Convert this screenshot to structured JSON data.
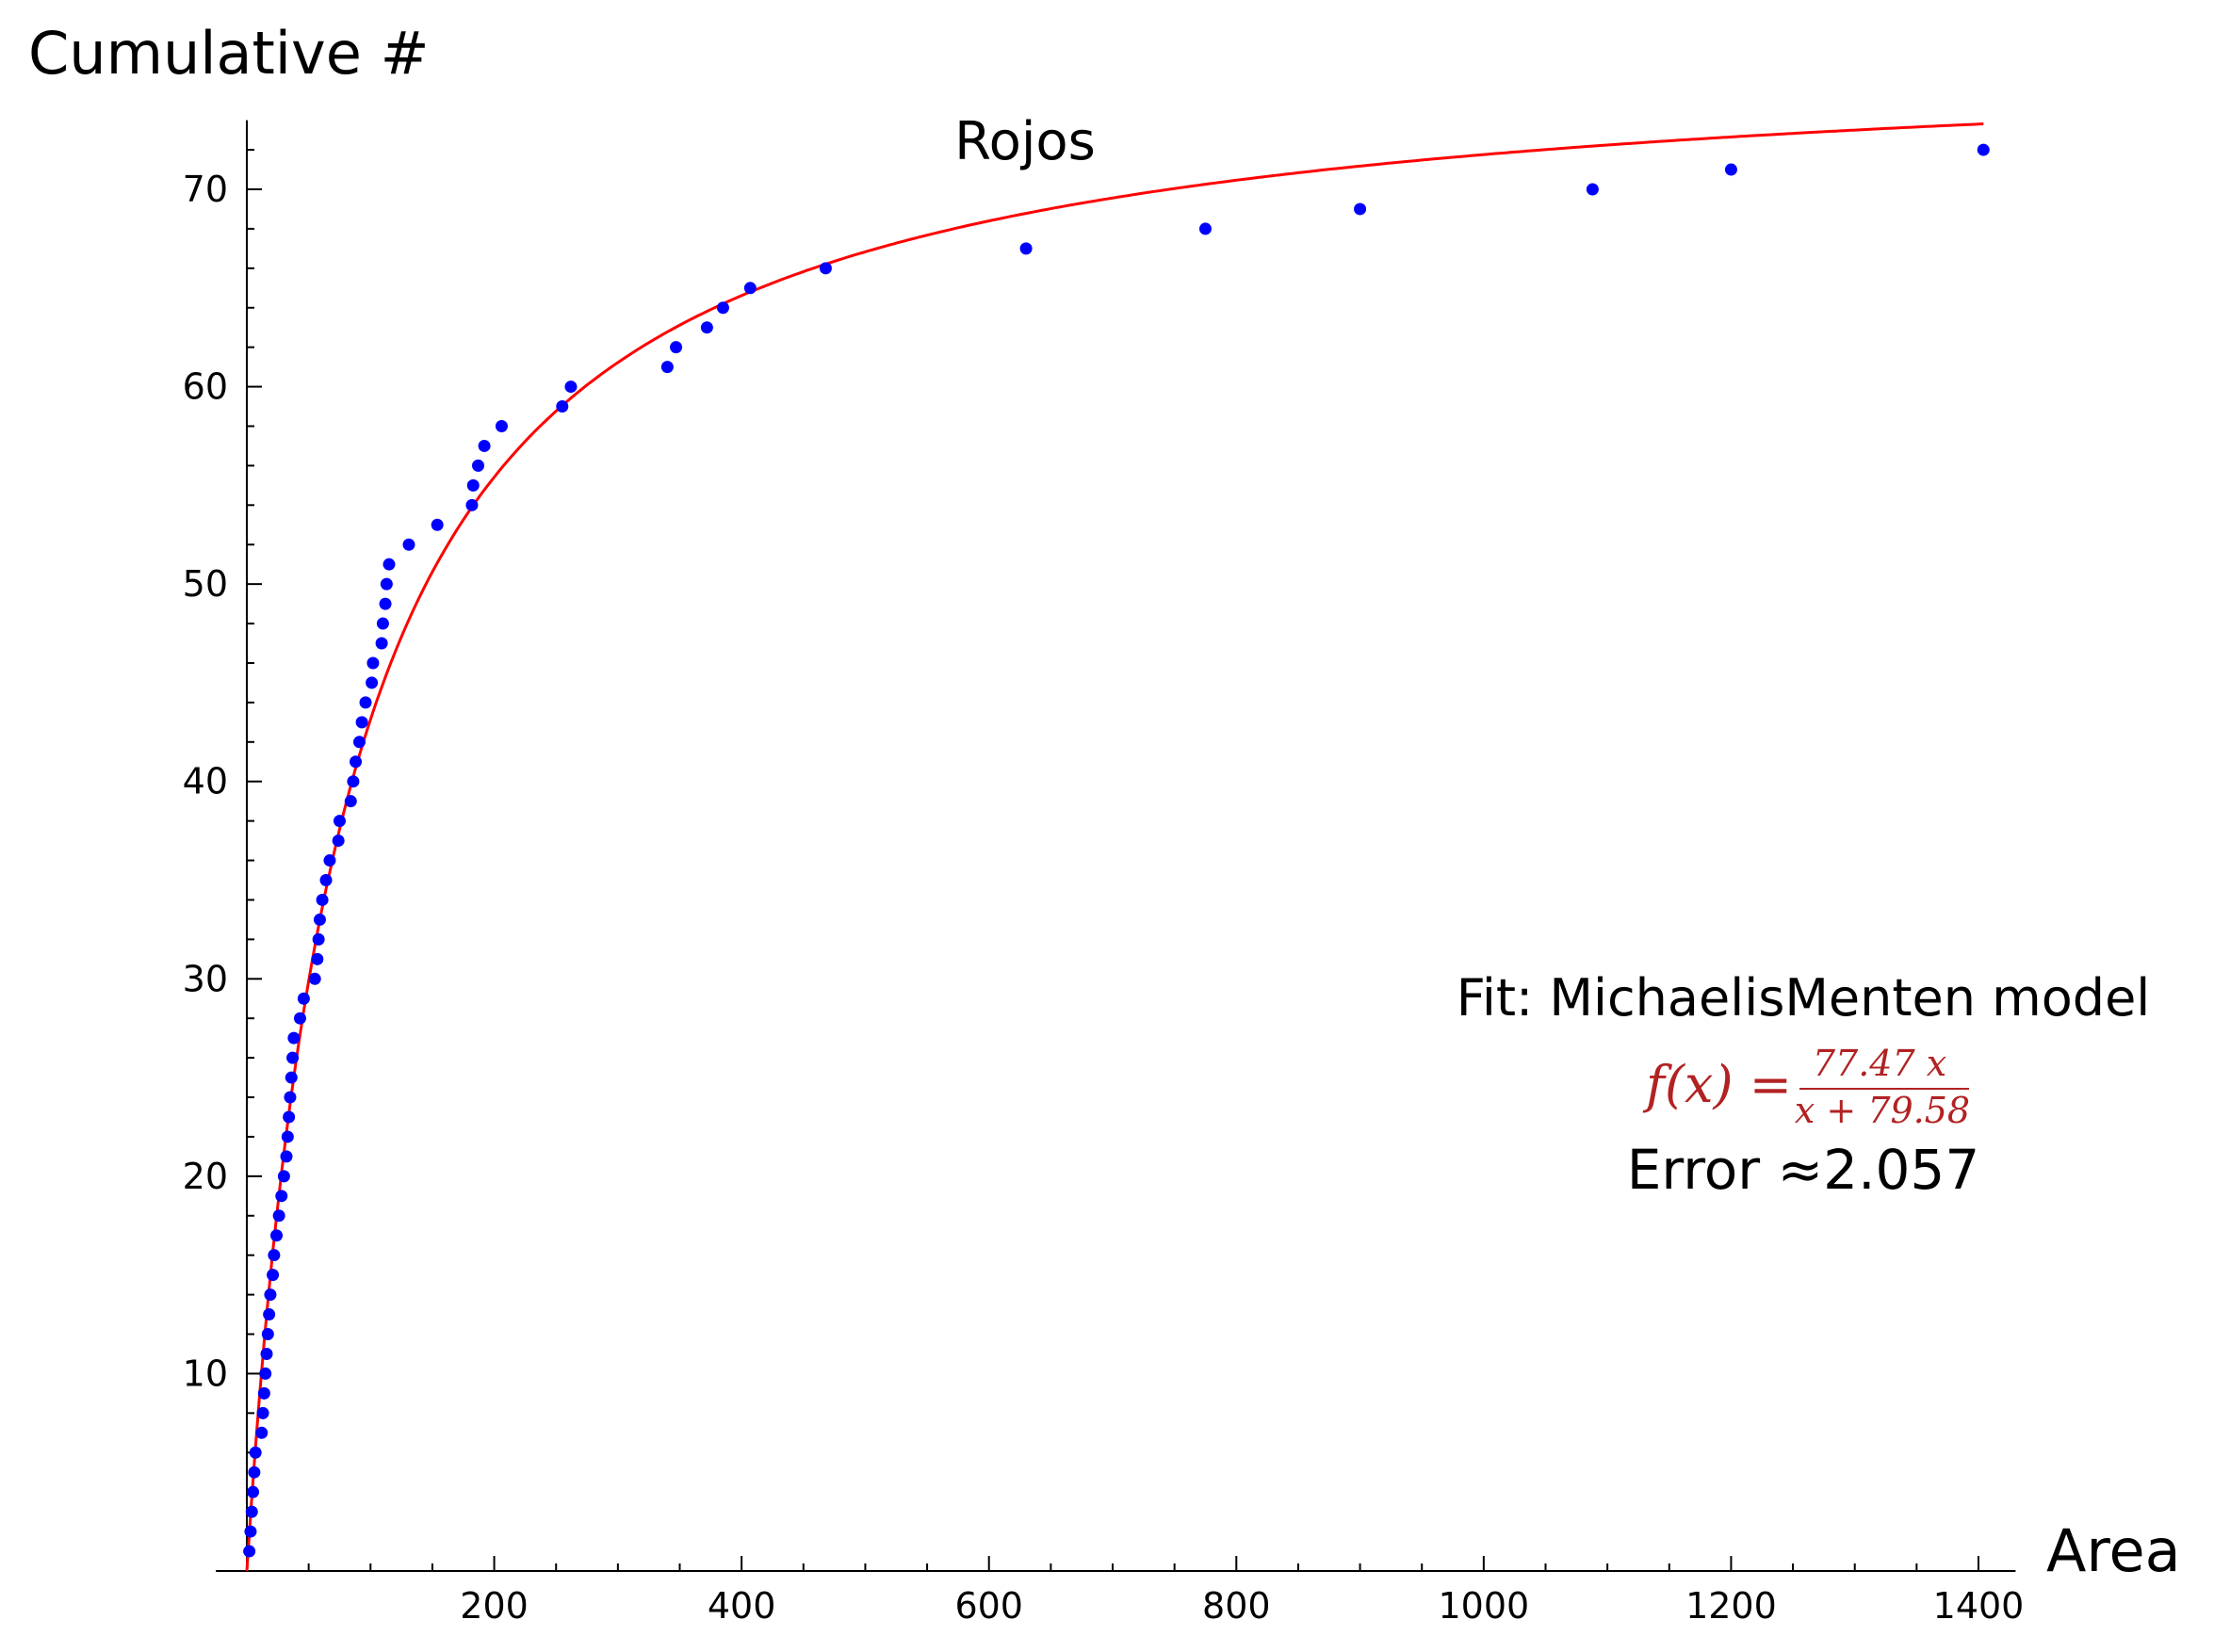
{
  "chart_data": {
    "type": "scatter",
    "title": "Rojos",
    "xlabel": "Area",
    "ylabel": "Cumulative #",
    "xlim": [
      -25,
      1430
    ],
    "ylim": [
      0,
      73.5
    ],
    "xticks": [
      200,
      400,
      600,
      800,
      1000,
      1200,
      1400
    ],
    "yticks": [
      10,
      20,
      30,
      40,
      50,
      60,
      70
    ],
    "grid": false,
    "colors": {
      "points": "#0000ff",
      "fit": "#ff0000",
      "error": "#ff00ff",
      "formula": "#b22222",
      "axis": "#000000"
    },
    "points": [
      [
        2,
        1
      ],
      [
        3,
        2
      ],
      [
        4,
        3
      ],
      [
        5,
        4
      ],
      [
        6,
        5
      ],
      [
        7,
        6
      ],
      [
        12,
        7
      ],
      [
        13,
        8
      ],
      [
        14,
        9
      ],
      [
        15,
        10
      ],
      [
        16,
        11
      ],
      [
        17,
        12
      ],
      [
        18,
        13
      ],
      [
        19,
        14
      ],
      [
        21,
        15
      ],
      [
        22,
        16
      ],
      [
        24,
        17
      ],
      [
        26,
        18
      ],
      [
        28,
        19
      ],
      [
        30,
        20
      ],
      [
        32,
        21
      ],
      [
        33,
        22
      ],
      [
        34,
        23
      ],
      [
        35,
        24
      ],
      [
        36,
        25
      ],
      [
        37,
        26
      ],
      [
        38,
        27
      ],
      [
        43,
        28
      ],
      [
        46,
        29
      ],
      [
        55,
        30
      ],
      [
        57,
        31
      ],
      [
        58,
        32
      ],
      [
        59,
        33
      ],
      [
        61,
        34
      ],
      [
        64,
        35
      ],
      [
        67,
        36
      ],
      [
        74,
        37
      ],
      [
        75,
        38
      ],
      [
        84,
        39
      ],
      [
        86,
        40
      ],
      [
        88,
        41
      ],
      [
        91,
        42
      ],
      [
        93,
        43
      ],
      [
        96,
        44
      ],
      [
        101,
        45
      ],
      [
        102,
        46
      ],
      [
        109,
        47
      ],
      [
        110,
        48
      ],
      [
        112,
        49
      ],
      [
        113,
        50
      ],
      [
        115,
        51
      ],
      [
        131,
        52
      ],
      [
        154,
        53
      ],
      [
        182,
        54
      ],
      [
        183,
        55
      ],
      [
        187,
        56
      ],
      [
        192,
        57
      ],
      [
        206,
        58
      ],
      [
        255,
        59
      ],
      [
        262,
        60
      ],
      [
        340,
        61
      ],
      [
        347,
        62
      ],
      [
        372,
        63
      ],
      [
        385,
        64
      ],
      [
        407,
        65
      ],
      [
        468,
        66
      ],
      [
        630,
        67
      ],
      [
        775,
        68
      ],
      [
        900,
        69
      ],
      [
        1088,
        70
      ],
      [
        1200,
        71
      ],
      [
        1404,
        72
      ]
    ],
    "fit": {
      "label": "Fit: MichaelisMenten model",
      "vmax": 77.47,
      "km": 79.58,
      "x_range": [
        0,
        1404
      ],
      "formula_lhs": "f(x) =",
      "formula_num": "77.47 x",
      "formula_den": "x + 79.58",
      "error_label": "Error ≈2.057"
    }
  }
}
